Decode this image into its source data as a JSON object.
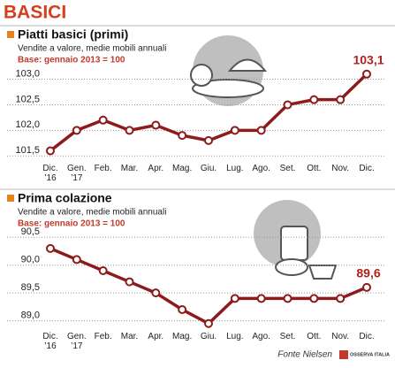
{
  "page_title": "BASICI",
  "chart_data": [
    {
      "type": "line",
      "title": "Piatti basici (primi)",
      "subtitle": "Vendite a valore, medie mobili annuali",
      "note": "Base: gennaio 2013 = 100",
      "categories": [
        "Dic. ’16",
        "Gen. ’17",
        "Feb.",
        "Mar.",
        "Apr.",
        "Mag.",
        "Giu.",
        "Lug.",
        "Ago.",
        "Set.",
        "Ott.",
        "Nov.",
        "Dic."
      ],
      "series": [
        {
          "color": "#8e1b1b",
          "values": [
            101.6,
            102.0,
            102.2,
            102.0,
            102.1,
            101.9,
            101.8,
            102.0,
            102.0,
            102.5,
            102.6,
            102.6,
            103.1
          ],
          "value_labels": [
            null,
            null,
            null,
            null,
            null,
            null,
            null,
            null,
            null,
            null,
            null,
            null,
            "103,1"
          ]
        }
      ],
      "ylim": [
        101.4,
        103.2
      ],
      "yticks": [
        {
          "value": 101.5,
          "label": "101,5"
        },
        {
          "value": 102.0,
          "label": "102,0"
        },
        {
          "value": 102.5,
          "label": "102,5"
        },
        {
          "value": 103.0,
          "label": "103,0"
        }
      ],
      "grid": true
    },
    {
      "type": "line",
      "title": "Prima colazione",
      "subtitle": "Vendite a valore, medie mobili annuali",
      "note": "Base: gennaio 2013 = 100",
      "categories": [
        "Dic. ’16",
        "Gen. ’17",
        "Feb.",
        "Mar.",
        "Apr.",
        "Mag.",
        "Giu.",
        "Lug.",
        "Ago.",
        "Set.",
        "Ott.",
        "Nov.",
        "Dic."
      ],
      "series": [
        {
          "color": "#8e1b1b",
          "values": [
            90.3,
            90.1,
            89.9,
            89.7,
            89.5,
            89.2,
            88.95,
            89.4,
            89.4,
            89.4,
            89.4,
            89.4,
            89.6
          ],
          "value_labels": [
            null,
            null,
            null,
            null,
            null,
            null,
            null,
            null,
            null,
            null,
            null,
            null,
            "89,6"
          ]
        }
      ],
      "ylim": [
        88.85,
        90.6
      ],
      "yticks": [
        {
          "value": 89.0,
          "label": "89,0"
        },
        {
          "value": 89.5,
          "label": "89,5"
        },
        {
          "value": 90.0,
          "label": "90,0"
        },
        {
          "value": 90.5,
          "label": "90,5"
        }
      ],
      "grid": true
    }
  ],
  "source": "Fonte Nielsen",
  "logo": "OSSERVA ITALIA"
}
